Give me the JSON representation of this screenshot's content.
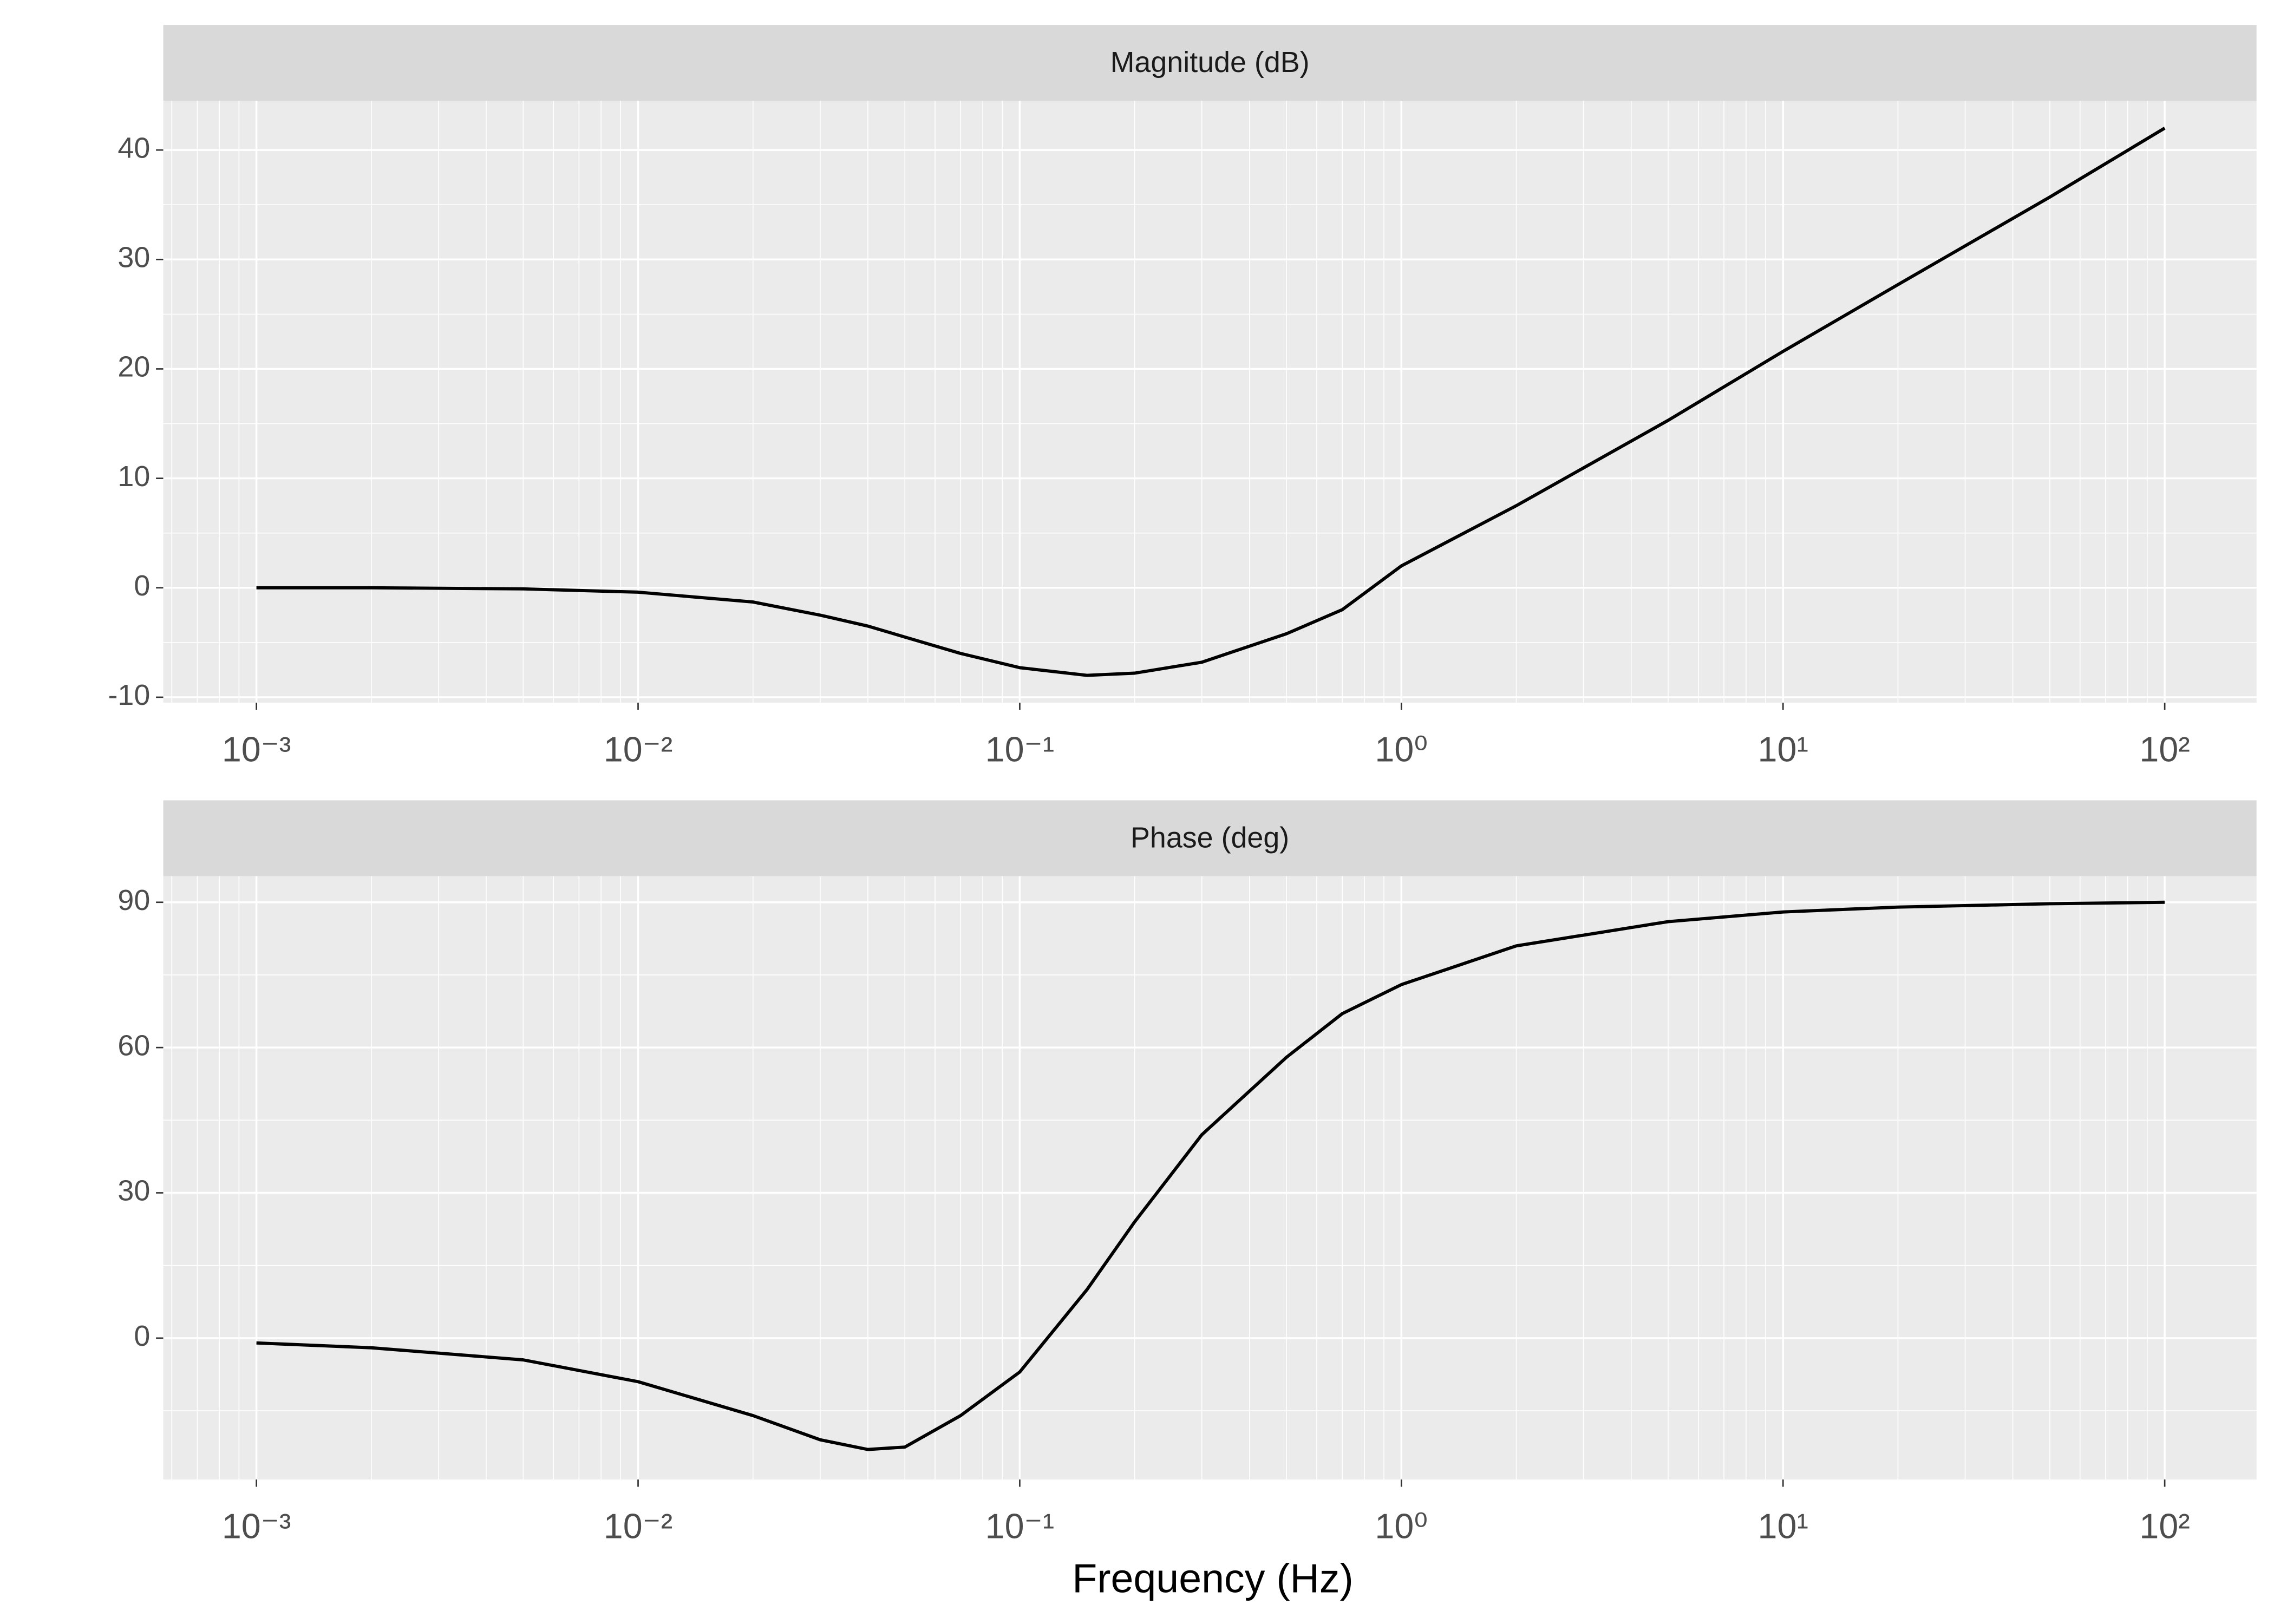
{
  "chart_data": [
    {
      "type": "line",
      "title": "Magnitude (dB)",
      "log_x": true,
      "grid": true,
      "color": "#000000",
      "x": [
        0.001,
        0.002,
        0.005,
        0.01,
        0.02,
        0.03,
        0.04,
        0.05,
        0.07,
        0.1,
        0.15,
        0.2,
        0.3,
        0.5,
        0.7,
        1,
        2,
        5,
        10,
        20,
        50,
        100
      ],
      "values": [
        0,
        0,
        -0.1,
        -0.4,
        -1.3,
        -2.5,
        -3.5,
        -4.5,
        -6,
        -7.3,
        -8,
        -7.8,
        -6.8,
        -4.2,
        -2,
        2,
        7.5,
        15.3,
        21.6,
        27.7,
        35.7,
        42
      ],
      "xlim": [
        0.00057,
        174
      ],
      "ylim": [
        -10.5,
        44.5
      ],
      "xticks": [
        {
          "value": 0.001,
          "label": "10⁻³"
        },
        {
          "value": 0.01,
          "label": "10⁻²"
        },
        {
          "value": 0.1,
          "label": "10⁻¹"
        },
        {
          "value": 1,
          "label": "10⁰"
        },
        {
          "value": 10,
          "label": "10¹"
        },
        {
          "value": 100,
          "label": "10²"
        }
      ],
      "yticks": [
        -10,
        0,
        10,
        20,
        30,
        40
      ]
    },
    {
      "type": "line",
      "title": "Phase (deg)",
      "log_x": true,
      "grid": true,
      "color": "#000000",
      "xlabel": "Frequency (Hz)",
      "x": [
        0.001,
        0.002,
        0.005,
        0.01,
        0.02,
        0.03,
        0.04,
        0.05,
        0.07,
        0.1,
        0.15,
        0.2,
        0.3,
        0.5,
        0.7,
        1,
        2,
        5,
        10,
        20,
        50,
        100
      ],
      "values": [
        -1,
        -2,
        -4.5,
        -9,
        -16,
        -21,
        -23,
        -22.5,
        -16,
        -7,
        10,
        24,
        42,
        58,
        67,
        73,
        81,
        86,
        88,
        89,
        89.7,
        90
      ],
      "xlim": [
        0.00057,
        174
      ],
      "ylim": [
        -29.2,
        95.4
      ],
      "xticks": [
        {
          "value": 0.001,
          "label": "10⁻³"
        },
        {
          "value": 0.01,
          "label": "10⁻²"
        },
        {
          "value": 0.1,
          "label": "10⁻¹"
        },
        {
          "value": 1,
          "label": "10⁰"
        },
        {
          "value": 10,
          "label": "10¹"
        },
        {
          "value": 100,
          "label": "10²"
        }
      ],
      "yticks": [
        0,
        30,
        60,
        90
      ]
    }
  ]
}
